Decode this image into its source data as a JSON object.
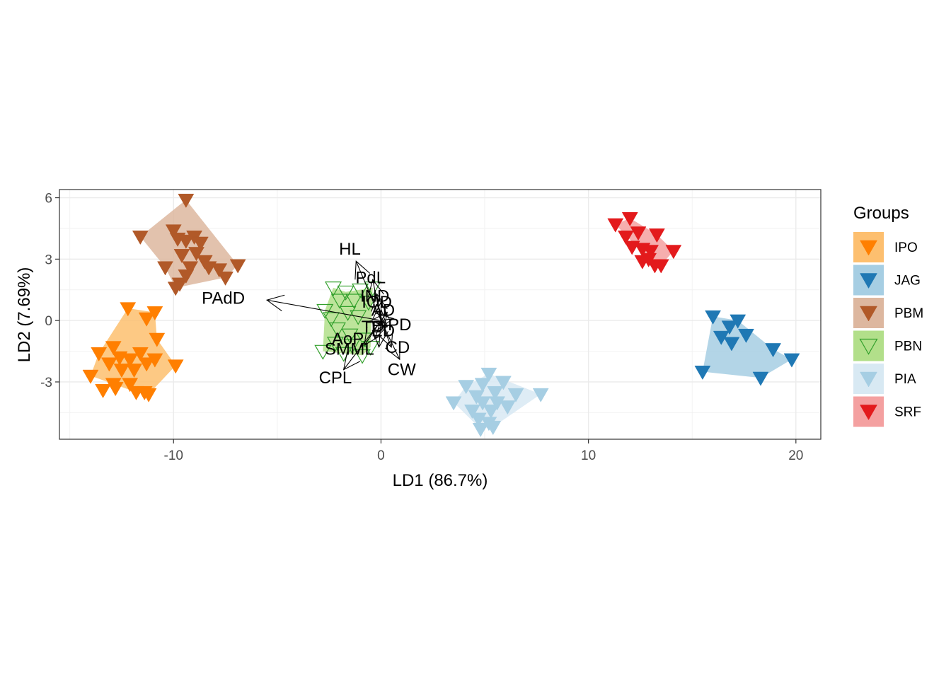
{
  "chart_data": {
    "type": "scatter",
    "xlabel": "LD1 (86.7%)",
    "ylabel": "LD2 (7.69%)",
    "xlim": [
      -15.5,
      21.2
    ],
    "ylim": [
      -5.8,
      6.4
    ],
    "x_ticks": [
      -10,
      0,
      10,
      20
    ],
    "y_ticks": [
      -3,
      0,
      3,
      6
    ],
    "x_tick_labels": [
      "-10",
      "0",
      "10",
      "20"
    ],
    "y_tick_labels": [
      "-3",
      "0",
      "3",
      "6"
    ],
    "grid": true,
    "marker": "triangle-down",
    "legend": {
      "title": "Groups",
      "position": "right",
      "entries": [
        "IPO",
        "JAG",
        "PBM",
        "PBN",
        "PIA",
        "SRF"
      ]
    },
    "series": [
      {
        "name": "IPO",
        "color": "#FF7F00",
        "fill": "#FDBF6F",
        "filled": true,
        "points": [
          [
            -12.2,
            0.6
          ],
          [
            -10.9,
            0.4
          ],
          [
            -11.3,
            0.1
          ],
          [
            -10.8,
            -0.9
          ],
          [
            -12.9,
            -1.3
          ],
          [
            -13.6,
            -1.6
          ],
          [
            -12.6,
            -1.8
          ],
          [
            -11.6,
            -1.6
          ],
          [
            -10.9,
            -1.9
          ],
          [
            -12.1,
            -1.9
          ],
          [
            -13.1,
            -2.1
          ],
          [
            -11.3,
            -2.1
          ],
          [
            -9.9,
            -2.2
          ],
          [
            -12.5,
            -2.4
          ],
          [
            -11.9,
            -2.4
          ],
          [
            -14.0,
            -2.7
          ],
          [
            -12.9,
            -3.1
          ],
          [
            -12.1,
            -3.1
          ],
          [
            -11.8,
            -3.5
          ],
          [
            -11.4,
            -3.5
          ],
          [
            -11.2,
            -3.6
          ],
          [
            -12.8,
            -3.3
          ],
          [
            -13.4,
            -3.4
          ]
        ]
      },
      {
        "name": "JAG",
        "color": "#1F78B4",
        "fill": "#A6CEE3",
        "filled": true,
        "points": [
          [
            16.0,
            0.2
          ],
          [
            17.2,
            0.0
          ],
          [
            16.4,
            -0.8
          ],
          [
            16.9,
            -1.1
          ],
          [
            17.6,
            -0.7
          ],
          [
            18.9,
            -1.4
          ],
          [
            19.8,
            -1.9
          ],
          [
            15.5,
            -2.5
          ],
          [
            18.3,
            -2.8
          ],
          [
            16.8,
            -0.3
          ]
        ]
      },
      {
        "name": "PBM",
        "color": "#B15928",
        "fill": "#DDB79F",
        "filled": true,
        "points": [
          [
            -9.4,
            5.9
          ],
          [
            -11.6,
            4.1
          ],
          [
            -10.0,
            4.4
          ],
          [
            -9.8,
            4.0
          ],
          [
            -9.4,
            3.9
          ],
          [
            -9.0,
            4.1
          ],
          [
            -8.7,
            3.8
          ],
          [
            -9.6,
            3.2
          ],
          [
            -8.5,
            2.9
          ],
          [
            -10.4,
            2.6
          ],
          [
            -9.2,
            2.6
          ],
          [
            -8.3,
            2.6
          ],
          [
            -7.8,
            2.5
          ],
          [
            -6.9,
            2.7
          ],
          [
            -9.4,
            2.2
          ],
          [
            -9.7,
            1.8
          ],
          [
            -8.9,
            3.3
          ],
          [
            -7.5,
            2.1
          ],
          [
            -9.9,
            1.6
          ]
        ]
      },
      {
        "name": "PBN",
        "color": "#33A02C",
        "fill": "#B2DF8A",
        "filled": false,
        "points": [
          [
            -2.3,
            1.6
          ],
          [
            -1.7,
            1.4
          ],
          [
            -1.0,
            1.5
          ],
          [
            -0.4,
            1.6
          ],
          [
            -2.0,
            1.0
          ],
          [
            -1.3,
            1.0
          ],
          [
            -0.6,
            0.9
          ],
          [
            -2.7,
            0.5
          ],
          [
            -1.6,
            0.4
          ],
          [
            -2.4,
            0.1
          ],
          [
            -1.1,
            0.2
          ],
          [
            -2.1,
            -0.4
          ],
          [
            -1.5,
            -0.7
          ],
          [
            -0.8,
            -0.9
          ],
          [
            -2.2,
            -1.1
          ],
          [
            -1.4,
            -1.2
          ],
          [
            -0.5,
            -1.3
          ],
          [
            -2.8,
            -1.5
          ],
          [
            -1.8,
            -1.6
          ],
          [
            -0.9,
            -1.7
          ]
        ]
      },
      {
        "name": "PIA",
        "color": "#A6CEE3",
        "fill": "#D8E9F3",
        "filled": true,
        "points": [
          [
            5.2,
            -2.6
          ],
          [
            5.9,
            -3.0
          ],
          [
            4.9,
            -3.1
          ],
          [
            4.1,
            -3.2
          ],
          [
            5.5,
            -3.5
          ],
          [
            6.5,
            -3.6
          ],
          [
            7.7,
            -3.6
          ],
          [
            4.6,
            -3.7
          ],
          [
            3.5,
            -4.0
          ],
          [
            4.9,
            -4.0
          ],
          [
            5.6,
            -4.0
          ],
          [
            6.1,
            -4.2
          ],
          [
            4.4,
            -4.4
          ],
          [
            5.3,
            -4.4
          ],
          [
            4.7,
            -4.8
          ],
          [
            5.2,
            -5.0
          ],
          [
            4.8,
            -5.3
          ],
          [
            5.4,
            -5.2
          ]
        ]
      },
      {
        "name": "SRF",
        "color": "#E31A1C",
        "fill": "#F4A0A0",
        "filled": true,
        "points": [
          [
            12.0,
            5.0
          ],
          [
            11.3,
            4.7
          ],
          [
            12.4,
            4.3
          ],
          [
            11.8,
            4.1
          ],
          [
            13.3,
            4.2
          ],
          [
            12.1,
            3.6
          ],
          [
            12.6,
            3.5
          ],
          [
            13.0,
            3.4
          ],
          [
            14.1,
            3.4
          ],
          [
            12.6,
            2.9
          ],
          [
            13.2,
            2.7
          ],
          [
            13.5,
            2.7
          ],
          [
            12.9,
            3.0
          ]
        ]
      }
    ],
    "hulls": {
      "IPO": [
        [
          -12.2,
          0.6
        ],
        [
          -10.9,
          0.4
        ],
        [
          -10.8,
          -0.9
        ],
        [
          -9.9,
          -2.2
        ],
        [
          -11.2,
          -3.6
        ],
        [
          -11.8,
          -3.5
        ],
        [
          -12.9,
          -3.1
        ],
        [
          -14.0,
          -2.7
        ],
        [
          -13.6,
          -1.6
        ]
      ],
      "JAG": [
        [
          16.0,
          0.2
        ],
        [
          17.2,
          0.0
        ],
        [
          18.9,
          -1.4
        ],
        [
          19.8,
          -1.9
        ],
        [
          18.3,
          -2.8
        ],
        [
          15.5,
          -2.5
        ]
      ],
      "PBM": [
        [
          -9.4,
          5.9
        ],
        [
          -6.9,
          2.7
        ],
        [
          -7.5,
          2.1
        ],
        [
          -9.9,
          1.6
        ],
        [
          -10.4,
          2.6
        ],
        [
          -11.6,
          4.1
        ]
      ],
      "PBN": [
        [
          -2.3,
          1.6
        ],
        [
          -1.7,
          1.4
        ],
        [
          -0.4,
          1.6
        ],
        [
          -0.5,
          -1.3
        ],
        [
          -0.9,
          -1.7
        ],
        [
          -1.8,
          -1.6
        ],
        [
          -2.8,
          -1.5
        ],
        [
          -2.7,
          0.5
        ]
      ],
      "PIA": [
        [
          5.2,
          -2.6
        ],
        [
          7.7,
          -3.6
        ],
        [
          5.4,
          -5.2
        ],
        [
          4.8,
          -5.3
        ],
        [
          3.5,
          -4.0
        ],
        [
          4.1,
          -3.2
        ]
      ],
      "SRF": [
        [
          12.0,
          5.0
        ],
        [
          13.3,
          4.2
        ],
        [
          14.1,
          3.4
        ],
        [
          13.5,
          2.7
        ],
        [
          13.2,
          2.7
        ],
        [
          11.3,
          4.7
        ]
      ]
    },
    "loadings": [
      {
        "label": "PAdD",
        "x": -5.5,
        "y": 1.0,
        "lx": -7.6,
        "ly": 1.1
      },
      {
        "label": "HL",
        "x": -1.2,
        "y": 2.9,
        "lx": -1.5,
        "ly": 3.5
      },
      {
        "label": "PdL",
        "x": -0.4,
        "y": 2.0,
        "lx": -0.5,
        "ly": 2.1
      },
      {
        "label": "IND",
        "x": -0.2,
        "y": 1.3,
        "lx": -0.3,
        "ly": 1.2
      },
      {
        "label": "IOD",
        "x": 0.0,
        "y": 0.9,
        "lx": -0.2,
        "ly": 0.9
      },
      {
        "label": "AD",
        "x": 0.3,
        "y": 0.4,
        "lx": 0.1,
        "ly": 0.5
      },
      {
        "label": "PD",
        "x": 0.6,
        "y": 0.1,
        "lx": 0.9,
        "ly": -0.2
      },
      {
        "label": "TD",
        "x": 0.2,
        "y": -0.1,
        "lx": -0.4,
        "ly": -0.3
      },
      {
        "label": "ED",
        "x": 0.3,
        "y": -0.3,
        "lx": 0.1,
        "ly": -0.5
      },
      {
        "label": "AoP",
        "x": -0.3,
        "y": -0.9,
        "lx": -1.6,
        "ly": -0.9
      },
      {
        "label": "CD",
        "x": 0.5,
        "y": -1.3,
        "lx": 0.8,
        "ly": -1.3
      },
      {
        "label": "SM",
        "x": -0.8,
        "y": -1.2,
        "lx": -2.1,
        "ly": -1.4
      },
      {
        "label": "ML",
        "x": -0.1,
        "y": -1.3,
        "lx": -0.9,
        "ly": -1.4
      },
      {
        "label": "CW",
        "x": 0.9,
        "y": -1.9,
        "lx": 1.0,
        "ly": -2.4
      },
      {
        "label": "CPL",
        "x": -1.8,
        "y": -2.4,
        "lx": -2.2,
        "ly": -2.8
      }
    ]
  }
}
